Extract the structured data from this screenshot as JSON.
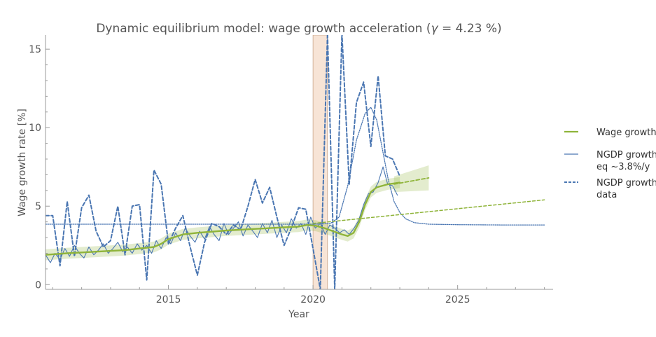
{
  "chart_data": {
    "type": "line",
    "title": "Dynamic equilibrium model: wage growth acceleration (",
    "title_symbol": "γ",
    "title_value": " = 4.23 %)",
    "xlabel": "Year",
    "ylabel": "Wage growth rate [%]",
    "xlim": [
      2010.75,
      2028.3
    ],
    "ylim": [
      -0.3,
      15.9
    ],
    "x_ticks": [
      {
        "value": 2015,
        "label": "2015"
      },
      {
        "value": 2020,
        "label": "2020"
      },
      {
        "value": 2025,
        "label": "2025"
      }
    ],
    "y_ticks": [
      {
        "value": 0,
        "label": "0"
      },
      {
        "value": 5,
        "label": "5"
      },
      {
        "value": 10,
        "label": "10"
      },
      {
        "value": 15,
        "label": "15"
      }
    ],
    "shaded_region": {
      "x0": 2020.0,
      "x1": 2020.5,
      "color": "#f4d9c4"
    },
    "legend": {
      "placement": "right",
      "entries": [
        {
          "lines": [
            "Wage growth"
          ],
          "color": "#8fb43a",
          "style": "solid"
        },
        {
          "lines": [
            "NGDP growth",
            "eq ~3.8%/y"
          ],
          "color": "#4a76b2",
          "style": "solid"
        },
        {
          "lines": [
            "NGDP growth",
            "data"
          ],
          "color": "#4a76b2",
          "style": "dashed"
        }
      ]
    },
    "series": [
      {
        "name": "NGDP growth data",
        "style": "dashed",
        "color": "#4a76b2",
        "x": [
          2010.75,
          2011.0,
          2011.25,
          2011.5,
          2011.75,
          2012.0,
          2012.25,
          2012.5,
          2012.75,
          2013.0,
          2013.25,
          2013.5,
          2013.75,
          2014.0,
          2014.25,
          2014.5,
          2014.75,
          2015.0,
          2015.25,
          2015.5,
          2015.75,
          2016.0,
          2016.25,
          2016.5,
          2016.75,
          2017.0,
          2017.25,
          2017.5,
          2017.75,
          2018.0,
          2018.25,
          2018.5,
          2018.75,
          2019.0,
          2019.25,
          2019.5,
          2019.75,
          2020.0,
          2020.25,
          2020.5,
          2020.75,
          2021.0,
          2021.25,
          2021.5,
          2021.75,
          2022.0,
          2022.25,
          2022.5,
          2022.75,
          2023.0
        ],
        "y": [
          4.4,
          4.4,
          1.2,
          5.3,
          1.8,
          4.9,
          5.7,
          3.4,
          2.4,
          2.8,
          5.0,
          1.9,
          5.0,
          5.1,
          0.3,
          7.3,
          6.4,
          2.6,
          3.6,
          4.4,
          2.4,
          0.6,
          2.7,
          3.9,
          3.7,
          3.2,
          3.8,
          3.5,
          5.0,
          6.7,
          5.2,
          6.2,
          4.3,
          2.5,
          3.6,
          4.9,
          4.8,
          2.3,
          -0.3,
          16,
          -0.3,
          16,
          6.4,
          11.6,
          12.9,
          8.8,
          13.3,
          8.2,
          8.0,
          6.9
        ]
      },
      {
        "name": "NGDP growth eq ~3.8%/y",
        "style": "dotted",
        "color": "#4a76b2",
        "x": [
          2010.75,
          2012,
          2014,
          2016,
          2018,
          2019.5,
          2020.25,
          2020.6,
          2020.9,
          2021.2,
          2021.5,
          2021.8,
          2022.0,
          2022.2,
          2022.4,
          2022.6,
          2022.8,
          2023.0,
          2023.2,
          2023.5,
          2024.0,
          2025.0,
          2026.5,
          2028.0
        ],
        "y": [
          3.85,
          3.85,
          3.85,
          3.85,
          3.85,
          3.85,
          3.86,
          3.9,
          4.3,
          6.3,
          9.2,
          10.9,
          11.3,
          10.5,
          8.6,
          6.7,
          5.3,
          4.6,
          4.2,
          3.95,
          3.85,
          3.82,
          3.8,
          3.8
        ]
      },
      {
        "name": "NGDP growth eq ~3.8%/y",
        "style": "solid",
        "color": "#4a76b2",
        "x": [
          2010.75,
          2010.92,
          2011.08,
          2011.25,
          2011.42,
          2011.58,
          2011.75,
          2011.92,
          2012.08,
          2012.25,
          2012.42,
          2012.58,
          2012.75,
          2012.92,
          2013.08,
          2013.25,
          2013.42,
          2013.58,
          2013.75,
          2013.92,
          2014.08,
          2014.25,
          2014.42,
          2014.58,
          2014.75,
          2014.92,
          2015.08,
          2015.25,
          2015.42,
          2015.58,
          2015.75,
          2015.92,
          2016.08,
          2016.25,
          2016.42,
          2016.58,
          2016.75,
          2016.92,
          2017.08,
          2017.25,
          2017.42,
          2017.58,
          2017.75,
          2017.92,
          2018.08,
          2018.25,
          2018.42,
          2018.58,
          2018.75,
          2018.92,
          2019.08,
          2019.25,
          2019.42,
          2019.58,
          2019.75,
          2019.92,
          2020.08,
          2020.25,
          2020.42,
          2020.58,
          2020.75,
          2020.92,
          2021.08,
          2021.25,
          2021.42,
          2021.58,
          2021.75,
          2021.92,
          2022.08,
          2022.25,
          2022.42,
          2022.58,
          2022.75,
          2022.92
        ],
        "y": [
          1.9,
          1.4,
          2.0,
          1.6,
          2.3,
          1.8,
          2.5,
          2.0,
          1.7,
          2.4,
          1.9,
          2.2,
          2.6,
          2.0,
          2.3,
          2.7,
          2.1,
          2.4,
          2.0,
          2.6,
          2.2,
          2.5,
          2.0,
          2.8,
          2.3,
          3.0,
          2.6,
          3.3,
          2.8,
          3.6,
          3.1,
          2.7,
          3.4,
          2.9,
          3.7,
          3.2,
          2.8,
          3.9,
          3.2,
          3.6,
          4.0,
          3.1,
          3.8,
          3.4,
          3.0,
          3.9,
          3.3,
          4.1,
          3.0,
          3.8,
          3.3,
          4.2,
          3.6,
          3.9,
          3.2,
          4.3,
          3.6,
          3.9,
          3.2,
          3.8,
          3.6,
          3.3,
          3.5,
          3.2,
          3.6,
          4.1,
          5.1,
          5.8,
          5.9,
          6.5,
          7.5,
          6.4,
          6.3,
          5.7
        ]
      },
      {
        "name": "Wage growth",
        "style": "solid",
        "color": "#8fb43a",
        "band": 0.35,
        "x": [
          2010.75,
          2011.5,
          2012.5,
          2013.5,
          2014.0,
          2014.5,
          2014.75,
          2015.0,
          2015.5,
          2016.0,
          2017.0,
          2018.0,
          2019.0,
          2019.5,
          2019.8,
          2020.1,
          2020.4,
          2020.7,
          2021.0,
          2021.2,
          2021.4,
          2021.6,
          2021.8,
          2022.0,
          2022.2,
          2022.4,
          2022.6,
          2022.8,
          2023.0
        ],
        "y": [
          1.9,
          2.0,
          2.1,
          2.2,
          2.3,
          2.4,
          2.6,
          2.9,
          3.2,
          3.3,
          3.45,
          3.55,
          3.65,
          3.7,
          3.8,
          3.75,
          3.6,
          3.4,
          3.2,
          3.1,
          3.3,
          4.0,
          5.1,
          5.9,
          6.2,
          6.3,
          6.4,
          6.45,
          6.5
        ]
      },
      {
        "name": "Wage growth",
        "style": "dashed-forecast",
        "color": "#8fb43a",
        "x": [
          2022.8,
          2024.0
        ],
        "y": [
          6.4,
          6.8
        ],
        "band_upper": [
          6.9,
          7.6
        ],
        "band_lower": [
          5.9,
          6.0
        ]
      },
      {
        "name": "Wage growth",
        "style": "dashed-trend",
        "color": "#8fb43a",
        "x": [
          2020.0,
          2028.0
        ],
        "y": [
          3.9,
          5.4
        ]
      }
    ]
  }
}
